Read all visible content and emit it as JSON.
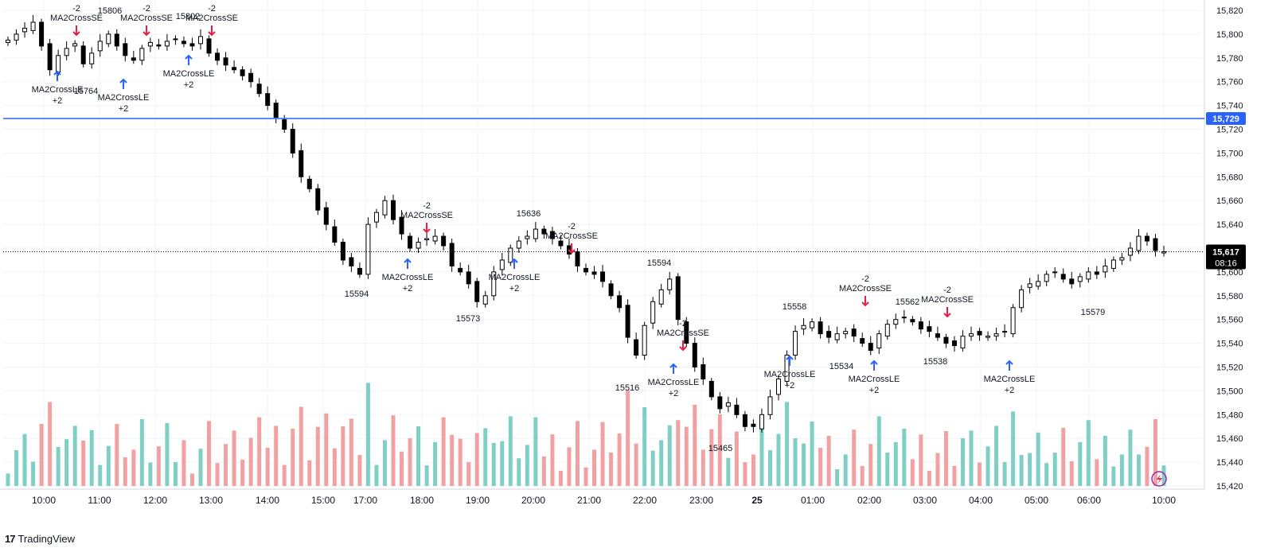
{
  "brand": {
    "name": "TradingView",
    "logo_icon": "tradingview-logo-icon"
  },
  "colors": {
    "up": "#ffffff",
    "down": "#000000",
    "vol_up": "#7fcfc4",
    "vol_down": "#f2a1a3",
    "hline": "#2962ff",
    "long": "#2962ff",
    "short": "#e91e43"
  },
  "chart_data": {
    "type": "candlestick",
    "y_ticks": [
      "15,820",
      "15,800",
      "15,780",
      "15,760",
      "15,740",
      "15,720",
      "15,700",
      "15,680",
      "15,660",
      "15,640",
      "15,620",
      "15,600",
      "15,580",
      "15,560",
      "15,540",
      "15,520",
      "15,500",
      "15,480",
      "15,460",
      "15,440",
      "15,420"
    ],
    "ylim": [
      15420,
      15820
    ],
    "x_ticks": [
      "10:00",
      "11:00",
      "12:00",
      "13:00",
      "14:00",
      "15:00",
      "17:00",
      "18:00",
      "19:00",
      "20:00",
      "21:00",
      "22:00",
      "23:00",
      "25",
      "01:00",
      "02:00",
      "03:00",
      "04:00",
      "05:00",
      "06:00",
      "10:00"
    ],
    "hline": {
      "value": 15729,
      "label": "15,729"
    },
    "last_price": {
      "value": 15617,
      "label": "15,617",
      "countdown": "08:16"
    },
    "price_labels": [
      "15806",
      "15764",
      "15802",
      "15594",
      "15636",
      "15573",
      "15594",
      "15516",
      "15465",
      "15558",
      "15534",
      "15562",
      "15538",
      "15579"
    ],
    "signal_labels": [
      "-2",
      "MA2CrossSE",
      "MA2CrossLE",
      "+2"
    ],
    "close": [
      15795,
      15800,
      15805,
      15810,
      15790,
      15770,
      15782,
      15788,
      15792,
      15775,
      15784,
      15794,
      15800,
      15790,
      15782,
      15778,
      15788,
      15793,
      15790,
      15794,
      15796,
      15792,
      15790,
      15798,
      15784,
      15778,
      15774,
      15770,
      15765,
      15760,
      15750,
      15740,
      15730,
      15720,
      15700,
      15680,
      15670,
      15652,
      15640,
      15625,
      15610,
      15605,
      15598,
      15640,
      15650,
      15660,
      15644,
      15632,
      15620,
      15625,
      15628,
      15630,
      15622,
      15605,
      15600,
      15590,
      15575,
      15580,
      15600,
      15610,
      15620,
      15626,
      15630,
      15636,
      15632,
      15628,
      15622,
      15615,
      15605,
      15600,
      15598,
      15592,
      15580,
      15570,
      15545,
      15530,
      15555,
      15575,
      15585,
      15594,
      15560,
      15540,
      15520,
      15510,
      15495,
      15485,
      15490,
      15480,
      15470,
      15470,
      15480,
      15495,
      15510,
      15530,
      15550,
      15555,
      15558,
      15548,
      15545,
      15548,
      15550,
      15546,
      15540,
      15534,
      15548,
      15556,
      15560,
      15562,
      15558,
      15552,
      15550,
      15545,
      15540,
      15538,
      15546,
      15548,
      15547,
      15546,
      15548,
      15550,
      15570,
      15585,
      15590,
      15592,
      15598,
      15600,
      15594,
      15590,
      15596,
      15600,
      15598,
      15605,
      15610,
      15612,
      15620,
      15630,
      15626,
      15618,
      15617
    ]
  }
}
